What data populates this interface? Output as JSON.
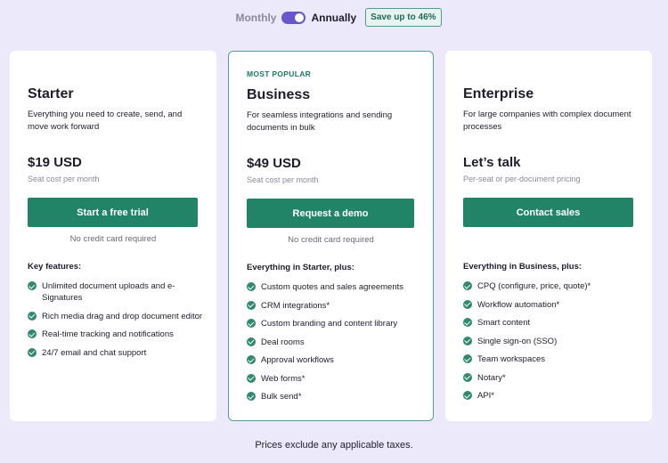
{
  "billing": {
    "monthly": "Monthly",
    "annually": "Annually",
    "selected": "Annually",
    "save_badge": "Save up to 46%"
  },
  "colors": {
    "accent": "#228467",
    "toggle": "#6a55d1",
    "background": "#ece9fb"
  },
  "plans": [
    {
      "name": "Starter",
      "desc": "Everything you need to create, send, and move work forward",
      "price": "$19 USD",
      "sub": "Seat cost per month",
      "button": "Start a free trial",
      "note": "No credit card required",
      "features_heading": "Key features:",
      "features": [
        "Unlimited document uploads and e-Signatures",
        "Rich media drag and drop document editor",
        "Real-time tracking and notifications",
        "24/7 email and chat support"
      ]
    },
    {
      "badge": "MOST POPULAR",
      "name": "Business",
      "desc": "For seamless integrations and sending documents in bulk",
      "price": "$49 USD",
      "sub": "Seat cost per month",
      "button": "Request a demo",
      "note": "No credit card required",
      "features_heading": "Everything in Starter, plus:",
      "features": [
        "Custom quotes and sales agreements",
        "CRM integrations*",
        "Custom branding and content library",
        "Deal rooms",
        "Approval workflows",
        "Web forms*",
        "Bulk send*"
      ]
    },
    {
      "name": "Enterprise",
      "desc": "For large companies with complex document processes",
      "price": "Let’s talk",
      "sub": "Per-seat or per-document pricing",
      "button": "Contact sales",
      "features_heading": "Everything in Business, plus:",
      "features": [
        "CPQ (configure, price, quote)*",
        "Workflow automation*",
        "Smart content",
        "Single sign-on (SSO)",
        "Team workspaces",
        "Notary*",
        "API*"
      ]
    }
  ],
  "footer": "Prices exclude any applicable taxes."
}
